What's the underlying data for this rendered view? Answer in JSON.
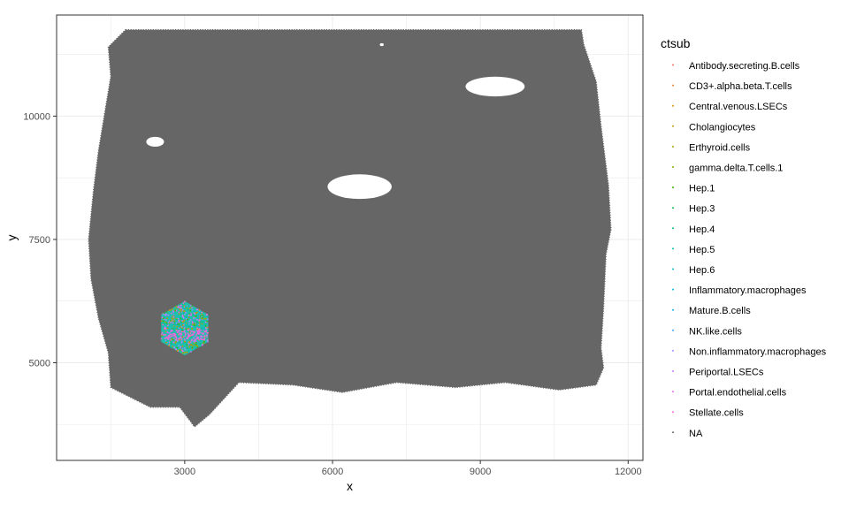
{
  "chart_data": {
    "type": "scatter",
    "title": "",
    "xlabel": "x",
    "ylabel": "y",
    "xlim": [
      400,
      12300
    ],
    "ylim": [
      3020,
      12050
    ],
    "x_ticks": [
      3000,
      6000,
      9000,
      12000
    ],
    "y_ticks": [
      5000,
      7500,
      10000
    ],
    "grid": true,
    "legend": {
      "title": "ctsub",
      "position": "right",
      "entries": [
        {
          "name": "Antibody.secreting.B.cells",
          "color": "#F8766D"
        },
        {
          "name": "CD3+.alpha.beta.T.cells",
          "color": "#EA8331"
        },
        {
          "name": "Central.venous.LSECs",
          "color": "#D89000"
        },
        {
          "name": "Cholangiocytes",
          "color": "#C09B00"
        },
        {
          "name": "Erthyroid.cells",
          "color": "#A3A500"
        },
        {
          "name": "gamma.delta.T.cells.1",
          "color": "#7CAE00"
        },
        {
          "name": "Hep.1",
          "color": "#39B600"
        },
        {
          "name": "Hep.3",
          "color": "#00BB4E"
        },
        {
          "name": "Hep.4",
          "color": "#00BF7D"
        },
        {
          "name": "Hep.5",
          "color": "#00C1A3"
        },
        {
          "name": "Hep.6",
          "color": "#00BFC4"
        },
        {
          "name": "Inflammatory.macrophages",
          "color": "#00BAE0"
        },
        {
          "name": "Mature.B.cells",
          "color": "#00B0F6"
        },
        {
          "name": "NK.like.cells",
          "color": "#35A2FF"
        },
        {
          "name": "Non.inflammatory.macrophages",
          "color": "#9590FF"
        },
        {
          "name": "Periportal.LSECs",
          "color": "#C77CFF"
        },
        {
          "name": "Portal.endothelial.cells",
          "color": "#E76BF3"
        },
        {
          "name": "Stellate.cells",
          "color": "#FA62DB"
        },
        {
          "name": "NA",
          "color": "#666666"
        }
      ]
    },
    "tissue_outline": [
      [
        1800,
        11750
      ],
      [
        11050,
        11750
      ],
      [
        11100,
        11450
      ],
      [
        11350,
        10700
      ],
      [
        11450,
        9800
      ],
      [
        11600,
        8600
      ],
      [
        11650,
        7700
      ],
      [
        11550,
        7200
      ],
      [
        11500,
        6100
      ],
      [
        11450,
        5300
      ],
      [
        11500,
        4900
      ],
      [
        11350,
        4550
      ],
      [
        10600,
        4450
      ],
      [
        9500,
        4600
      ],
      [
        8500,
        4500
      ],
      [
        7300,
        4600
      ],
      [
        6200,
        4400
      ],
      [
        5200,
        4550
      ],
      [
        4100,
        4600
      ],
      [
        3500,
        3950
      ],
      [
        3200,
        3700
      ],
      [
        2900,
        4100
      ],
      [
        2300,
        4100
      ],
      [
        1800,
        4350
      ],
      [
        1500,
        4500
      ],
      [
        1450,
        5200
      ],
      [
        1250,
        5900
      ],
      [
        1100,
        6700
      ],
      [
        1050,
        7500
      ],
      [
        1150,
        8500
      ],
      [
        1250,
        9300
      ],
      [
        1400,
        10200
      ],
      [
        1500,
        10800
      ],
      [
        1450,
        11400
      ]
    ],
    "holes": [
      {
        "cx": 6550,
        "cy": 8570,
        "rx": 650,
        "ry": 250
      },
      {
        "cx": 7000,
        "cy": 11450,
        "rx": 40,
        "ry": 30
      },
      {
        "cx": 2400,
        "cy": 9480,
        "rx": 180,
        "ry": 100
      },
      {
        "cx": 9300,
        "cy": 10600,
        "rx": 600,
        "ry": 200
      }
    ],
    "highlight_region": {
      "type": "hexagon",
      "center": [
        3000,
        5700
      ],
      "radius": 550,
      "dominant_series": [
        "Hep.5",
        "Hep.6",
        "Hep.4",
        "Hep.1",
        "Cholangiocytes",
        "Erthyroid.cells",
        "Stellate.cells",
        "Non.inflammatory.macrophages",
        "Portal.endothelial.cells",
        "Periportal.LSECs",
        "Central.venous.LSECs"
      ]
    }
  }
}
